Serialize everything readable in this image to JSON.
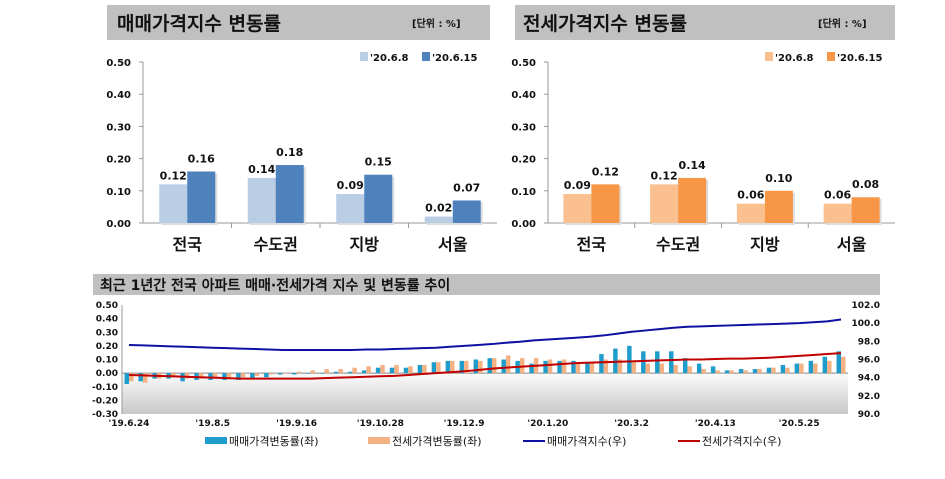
{
  "chart_data": [
    {
      "type": "bar",
      "title": "매매가격지수 변동률",
      "unit_label": "[단위 : %]",
      "categories": [
        "전국",
        "수도권",
        "지방",
        "서울"
      ],
      "series": [
        {
          "name": "'20.6.8",
          "values": [
            0.12,
            0.14,
            0.09,
            0.02
          ],
          "color": "#b9cde5"
        },
        {
          "name": "'20.6.15",
          "values": [
            0.16,
            0.18,
            0.15,
            0.07
          ],
          "color": "#4f81bd"
        }
      ],
      "ylim": [
        0,
        0.5
      ],
      "yticks": [
        "0.00",
        "0.10",
        "0.20",
        "0.30",
        "0.40",
        "0.50"
      ],
      "legend": "top-right",
      "grid": false
    },
    {
      "type": "bar",
      "title": "전세가격지수 변동률",
      "unit_label": "[단위 : %]",
      "categories": [
        "전국",
        "수도권",
        "지방",
        "서울"
      ],
      "series": [
        {
          "name": "'20.6.8",
          "values": [
            0.09,
            0.12,
            0.06,
            0.06
          ],
          "color": "#fac090"
        },
        {
          "name": "'20.6.15",
          "values": [
            0.12,
            0.14,
            0.1,
            0.08
          ],
          "color": "#f79646"
        }
      ],
      "ylim": [
        0,
        0.5
      ],
      "yticks": [
        "0.00",
        "0.10",
        "0.20",
        "0.30",
        "0.40",
        "0.50"
      ],
      "legend": "top-right",
      "grid": false
    },
    {
      "type": "bar+line",
      "title": "최근 1년간 전국 아파트 매매·전세가격 지수 및 변동률 추이",
      "xtick_labels": [
        "'19.6.24",
        "'19.8.5",
        "'19.9.16",
        "'19.10.28",
        "'19.12.9",
        "'20.1.20",
        "'20.3.2",
        "'20.4.13",
        "'20.5.25"
      ],
      "ylim_left": [
        -0.3,
        0.5
      ],
      "yticks_left": [
        "-0.30",
        "-0.20",
        "-0.10",
        "0.00",
        "0.10",
        "0.20",
        "0.30",
        "0.40",
        "0.50"
      ],
      "ylim_right": [
        90,
        102
      ],
      "yticks_right": [
        "90.0",
        "92.0",
        "94.0",
        "96.0",
        "98.0",
        "100.0",
        "102.0"
      ],
      "legend": "bottom",
      "series": [
        {
          "name": "매매가격변동률(좌)",
          "type": "bar",
          "axis": "left",
          "color": "#1e9ccc",
          "values": [
            -0.08,
            -0.06,
            -0.04,
            -0.04,
            -0.06,
            -0.05,
            -0.05,
            -0.05,
            -0.05,
            -0.04,
            -0.03,
            -0.01,
            -0.01,
            0.0,
            0.0,
            0.01,
            0.01,
            0.02,
            0.04,
            0.04,
            0.04,
            0.06,
            0.08,
            0.09,
            0.09,
            0.1,
            0.11,
            0.1,
            0.09,
            0.07,
            0.09,
            0.09,
            0.09,
            0.08,
            0.14,
            0.18,
            0.2,
            0.16,
            0.16,
            0.16,
            0.11,
            0.07,
            0.05,
            0.02,
            0.03,
            0.03,
            0.04,
            0.06,
            0.07,
            0.09,
            0.12,
            0.16
          ]
        },
        {
          "name": "전세가격변동률(좌)",
          "type": "bar",
          "axis": "left",
          "color": "#f4b183",
          "values": [
            -0.06,
            -0.07,
            -0.04,
            -0.03,
            -0.04,
            -0.04,
            -0.04,
            -0.03,
            -0.03,
            -0.02,
            -0.01,
            0.0,
            0.01,
            0.02,
            0.03,
            0.03,
            0.04,
            0.05,
            0.06,
            0.06,
            0.05,
            0.06,
            0.08,
            0.09,
            0.09,
            0.09,
            0.11,
            0.13,
            0.11,
            0.11,
            0.1,
            0.1,
            0.08,
            0.08,
            0.1,
            0.1,
            0.09,
            0.07,
            0.07,
            0.06,
            0.05,
            0.03,
            0.02,
            0.02,
            0.02,
            0.03,
            0.04,
            0.04,
            0.07,
            0.07,
            0.09,
            0.12
          ]
        },
        {
          "name": "매매가격지수(우)",
          "type": "line",
          "axis": "right",
          "color": "#1010a0",
          "values": [
            97.6,
            97.55,
            97.5,
            97.45,
            97.4,
            97.35,
            97.3,
            97.25,
            97.2,
            97.15,
            97.1,
            97.05,
            97.05,
            97.05,
            97.05,
            97.05,
            97.05,
            97.1,
            97.1,
            97.15,
            97.2,
            97.25,
            97.3,
            97.4,
            97.5,
            97.6,
            97.7,
            97.85,
            97.95,
            98.1,
            98.2,
            98.3,
            98.4,
            98.5,
            98.65,
            98.85,
            99.05,
            99.2,
            99.35,
            99.5,
            99.6,
            99.65,
            99.7,
            99.75,
            99.8,
            99.85,
            99.9,
            99.95,
            100.0,
            100.1,
            100.2,
            100.4
          ]
        },
        {
          "name": "전세가격지수(우)",
          "type": "line",
          "axis": "right",
          "color": "#c00000",
          "values": [
            94.3,
            94.25,
            94.2,
            94.15,
            94.1,
            94.05,
            94.0,
            93.95,
            93.9,
            93.9,
            93.9,
            93.9,
            93.9,
            93.9,
            93.95,
            94.0,
            94.05,
            94.1,
            94.15,
            94.2,
            94.3,
            94.4,
            94.5,
            94.6,
            94.7,
            94.85,
            95.0,
            95.1,
            95.2,
            95.3,
            95.4,
            95.5,
            95.6,
            95.65,
            95.7,
            95.75,
            95.8,
            95.85,
            95.9,
            95.95,
            96.0,
            96.0,
            96.05,
            96.1,
            96.1,
            96.15,
            96.2,
            96.3,
            96.4,
            96.5,
            96.6,
            96.7
          ]
        }
      ]
    }
  ]
}
